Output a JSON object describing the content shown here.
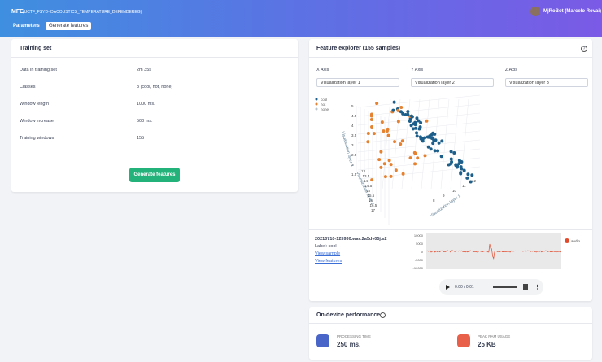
{
  "header": {
    "title": "MFE",
    "project": "(UCTF_FSYD-IDACOUSTICS_TEMPERATURE_DEFENDEREG)",
    "user": "MjRoBot (Marcelo Rovai)",
    "tabs": [
      "Parameters",
      "Generate features"
    ]
  },
  "training_set": {
    "title": "Training set",
    "rows": [
      [
        "Data in training set",
        "2m 35s"
      ],
      [
        "Classes",
        "3 (cool, hot, none)"
      ],
      [
        "Window length",
        "1000 ms."
      ],
      [
        "Window increase",
        "500 ms."
      ],
      [
        "Training windows",
        "155"
      ]
    ],
    "button": "Generate features"
  },
  "feature_explorer": {
    "title": "Feature explorer (155 samples)",
    "axes": [
      {
        "label": "X Axis",
        "value": "Visualization layer 1"
      },
      {
        "label": "Y Axis",
        "value": "Visualization layer 2"
      },
      {
        "label": "Z Axis",
        "value": "Visualization layer 3"
      }
    ],
    "legend": [
      "cool",
      "hot",
      "none"
    ],
    "plot_axis_titles": [
      "Visualization layer 1",
      "Visualization layer 2",
      "Visualization layer 3"
    ],
    "vertical_ticks": [
      "5",
      "4.5",
      "4",
      "3.5",
      "3",
      "2.5",
      "2",
      "1.5"
    ],
    "depth_ticks": [
      "13",
      "13.5",
      "14",
      "14.5",
      "15",
      "15.5",
      "16",
      "16.5",
      "17"
    ],
    "right_ticks": [
      "12",
      "11",
      "10",
      "9",
      "8"
    ],
    "sample": {
      "name": "20210710-125930.wav.2a5dv05j.s2",
      "label": "Label: cool",
      "links": [
        "View sample",
        "View features"
      ]
    },
    "wave_ticks": [
      "10000",
      "5000",
      "0",
      "-5000",
      "-10000"
    ],
    "wave_legend": "audio",
    "player_time": "0:00 / 0:01"
  },
  "performance": {
    "title": "On-device performance",
    "metrics": [
      {
        "label": "PROCESSING TIME",
        "value": "250 ms."
      },
      {
        "label": "PEAK RAM USAGE",
        "value": "25 KB"
      }
    ]
  }
}
